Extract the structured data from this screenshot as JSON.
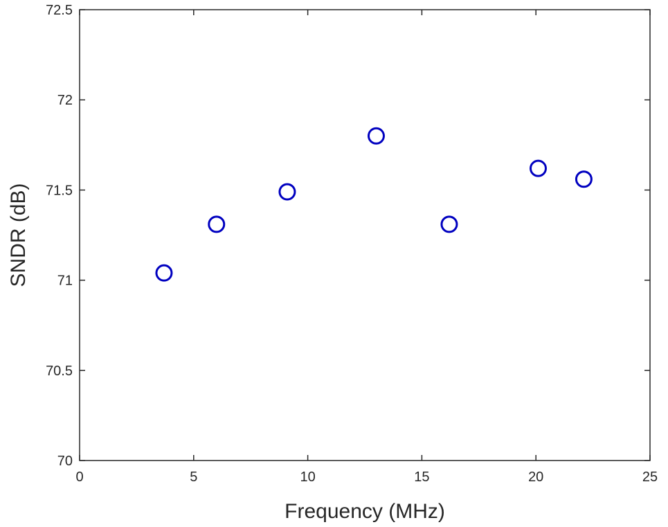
{
  "chart_data": {
    "type": "scatter",
    "title": "",
    "xlabel": "Frequency (MHz)",
    "ylabel": "SNDR (dB)",
    "xlim": [
      0,
      25
    ],
    "ylim": [
      70,
      72.5
    ],
    "xticks": [
      0,
      5,
      10,
      15,
      20,
      25
    ],
    "yticks": [
      70,
      70.5,
      71,
      71.5,
      72,
      72.5
    ],
    "xtick_labels": [
      "0",
      "5",
      "10",
      "15",
      "20",
      "25"
    ],
    "ytick_labels": [
      "70",
      "70.5",
      "71",
      "71.5",
      "72",
      "72.5"
    ],
    "grid": false,
    "marker_color": "#0000c0",
    "series": [
      {
        "marker": "circle",
        "x": [
          3.7,
          6.0,
          9.1,
          13.0,
          16.2,
          20.1,
          22.1
        ],
        "y": [
          71.04,
          71.31,
          71.49,
          71.8,
          71.31,
          71.62,
          71.56
        ]
      }
    ]
  }
}
